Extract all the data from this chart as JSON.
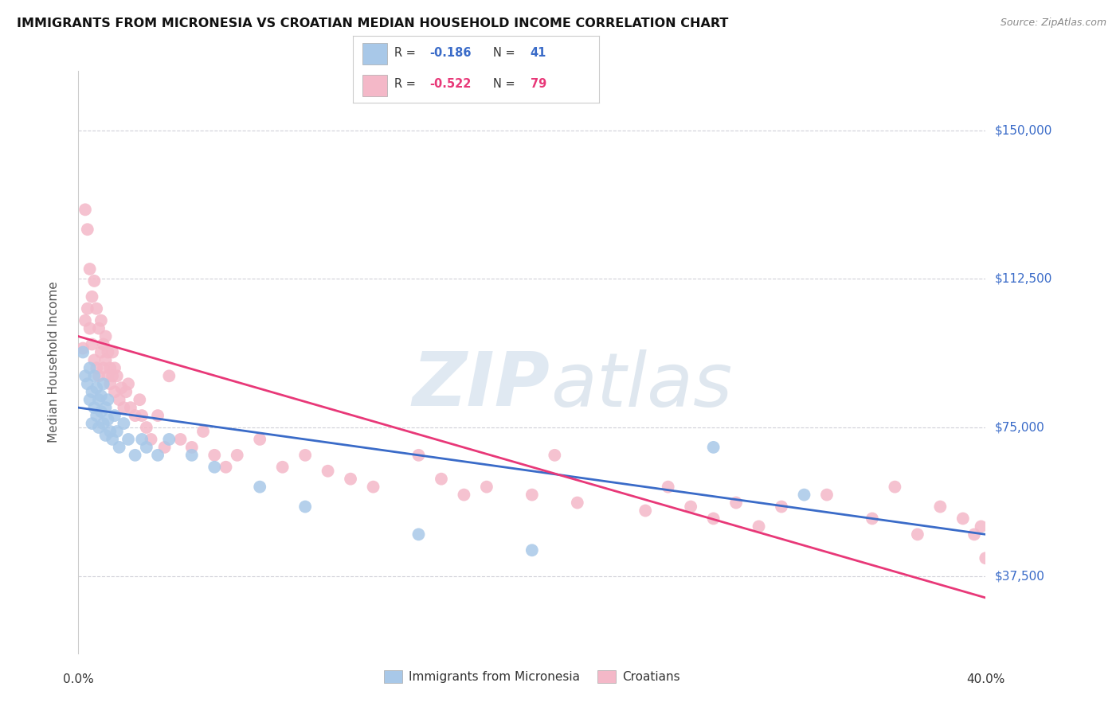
{
  "title": "IMMIGRANTS FROM MICRONESIA VS CROATIAN MEDIAN HOUSEHOLD INCOME CORRELATION CHART",
  "source": "Source: ZipAtlas.com",
  "ylabel": "Median Household Income",
  "yticks": [
    37500,
    75000,
    112500,
    150000
  ],
  "ytick_labels": [
    "$37,500",
    "$75,000",
    "$112,500",
    "$150,000"
  ],
  "xlim": [
    0.0,
    0.4
  ],
  "ylim": [
    18000,
    165000
  ],
  "blue_color": "#a8c8e8",
  "pink_color": "#f4b8c8",
  "blue_line_color": "#3a6bc8",
  "pink_line_color": "#e83878",
  "legend1_label": "Immigrants from Micronesia",
  "legend2_label": "Croatians",
  "blue_R": "-0.186",
  "blue_N": "41",
  "pink_R": "-0.522",
  "pink_N": "79",
  "blue_intercept": 80000,
  "blue_slope": -80000,
  "pink_intercept": 98000,
  "pink_slope": -165000,
  "blue_x": [
    0.002,
    0.003,
    0.004,
    0.005,
    0.005,
    0.006,
    0.006,
    0.007,
    0.007,
    0.008,
    0.008,
    0.009,
    0.009,
    0.01,
    0.01,
    0.011,
    0.011,
    0.012,
    0.012,
    0.013,
    0.013,
    0.014,
    0.015,
    0.016,
    0.017,
    0.018,
    0.02,
    0.022,
    0.025,
    0.028,
    0.03,
    0.035,
    0.04,
    0.05,
    0.06,
    0.08,
    0.1,
    0.15,
    0.2,
    0.28,
    0.32
  ],
  "blue_y": [
    94000,
    88000,
    86000,
    82000,
    90000,
    84000,
    76000,
    88000,
    80000,
    85000,
    78000,
    82000,
    75000,
    83000,
    79000,
    86000,
    76000,
    80000,
    73000,
    77000,
    82000,
    74000,
    72000,
    78000,
    74000,
    70000,
    76000,
    72000,
    68000,
    72000,
    70000,
    68000,
    72000,
    68000,
    65000,
    60000,
    55000,
    48000,
    44000,
    70000,
    58000
  ],
  "pink_x": [
    0.002,
    0.003,
    0.003,
    0.004,
    0.004,
    0.005,
    0.005,
    0.006,
    0.006,
    0.007,
    0.007,
    0.008,
    0.008,
    0.009,
    0.009,
    0.01,
    0.01,
    0.011,
    0.011,
    0.012,
    0.012,
    0.013,
    0.013,
    0.014,
    0.014,
    0.015,
    0.015,
    0.016,
    0.016,
    0.017,
    0.018,
    0.019,
    0.02,
    0.021,
    0.022,
    0.023,
    0.025,
    0.027,
    0.028,
    0.03,
    0.032,
    0.035,
    0.038,
    0.04,
    0.045,
    0.05,
    0.055,
    0.06,
    0.065,
    0.07,
    0.08,
    0.09,
    0.1,
    0.11,
    0.12,
    0.13,
    0.15,
    0.16,
    0.17,
    0.18,
    0.2,
    0.21,
    0.22,
    0.25,
    0.26,
    0.27,
    0.28,
    0.29,
    0.3,
    0.31,
    0.33,
    0.35,
    0.36,
    0.37,
    0.38,
    0.39,
    0.395,
    0.398,
    0.4
  ],
  "pink_y": [
    95000,
    102000,
    130000,
    105000,
    125000,
    100000,
    115000,
    96000,
    108000,
    92000,
    112000,
    90000,
    105000,
    88000,
    100000,
    94000,
    102000,
    90000,
    96000,
    92000,
    98000,
    88000,
    94000,
    90000,
    86000,
    88000,
    94000,
    84000,
    90000,
    88000,
    82000,
    85000,
    80000,
    84000,
    86000,
    80000,
    78000,
    82000,
    78000,
    75000,
    72000,
    78000,
    70000,
    88000,
    72000,
    70000,
    74000,
    68000,
    65000,
    68000,
    72000,
    65000,
    68000,
    64000,
    62000,
    60000,
    68000,
    62000,
    58000,
    60000,
    58000,
    68000,
    56000,
    54000,
    60000,
    55000,
    52000,
    56000,
    50000,
    55000,
    58000,
    52000,
    60000,
    48000,
    55000,
    52000,
    48000,
    50000,
    42000
  ],
  "watermark_zip": "ZIP",
  "watermark_atlas": "atlas",
  "background_color": "#ffffff",
  "grid_color": "#d0d0d8"
}
